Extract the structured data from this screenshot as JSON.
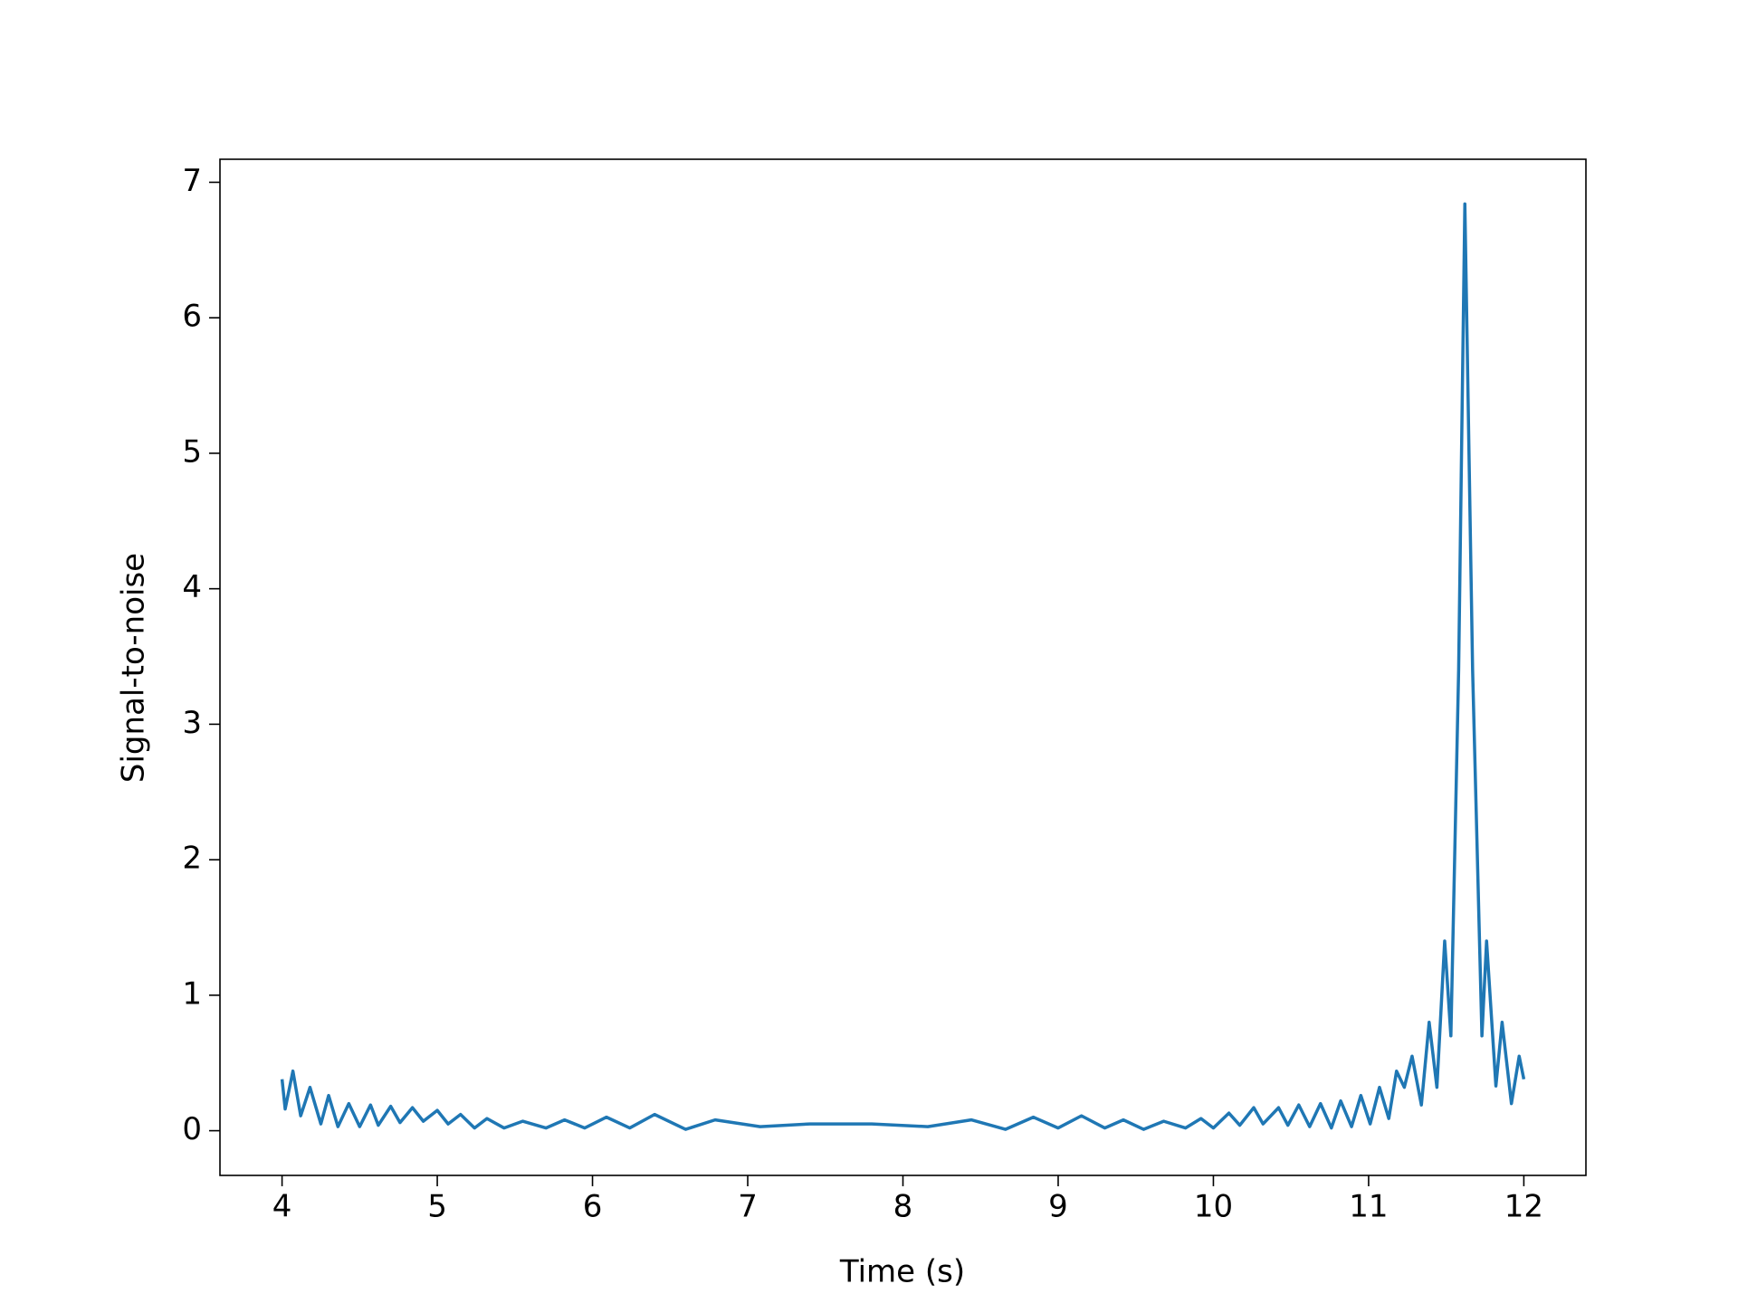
{
  "chart_data": {
    "type": "line",
    "xlabel": "Time (s)",
    "ylabel": "Signal-to-noise",
    "xlim": [
      3.6,
      12.4
    ],
    "ylim": [
      -0.33,
      7.17
    ],
    "xticks": [
      4,
      5,
      6,
      7,
      8,
      9,
      10,
      11,
      12
    ],
    "yticks": [
      0,
      1,
      2,
      3,
      4,
      5,
      6,
      7
    ],
    "grid": false,
    "series": [
      {
        "name": null,
        "color": "#1f77b4",
        "x": [
          4.0,
          4.02,
          4.07,
          4.12,
          4.18,
          4.25,
          4.3,
          4.36,
          4.43,
          4.5,
          4.57,
          4.62,
          4.7,
          4.76,
          4.84,
          4.91,
          5.0,
          5.07,
          5.15,
          5.24,
          5.32,
          5.43,
          5.55,
          5.7,
          5.82,
          5.95,
          6.09,
          6.24,
          6.4,
          6.6,
          6.79,
          7.08,
          7.4,
          7.8,
          8.16,
          8.44,
          8.66,
          8.84,
          9.0,
          9.15,
          9.3,
          9.42,
          9.55,
          9.68,
          9.82,
          9.92,
          10.0,
          10.1,
          10.17,
          10.26,
          10.32,
          10.42,
          10.48,
          10.55,
          10.62,
          10.69,
          10.76,
          10.82,
          10.89,
          10.95,
          11.01,
          11.07,
          11.13,
          11.18,
          11.23,
          11.28,
          11.34,
          11.39,
          11.44,
          11.49,
          11.53,
          11.58,
          11.62,
          11.67,
          11.73,
          11.76,
          11.82,
          11.86,
          11.92,
          11.97,
          12.0
        ],
        "values": [
          0.38,
          0.16,
          0.44,
          0.11,
          0.32,
          0.05,
          0.26,
          0.03,
          0.2,
          0.03,
          0.19,
          0.04,
          0.18,
          0.06,
          0.17,
          0.07,
          0.15,
          0.05,
          0.12,
          0.02,
          0.09,
          0.02,
          0.07,
          0.02,
          0.08,
          0.02,
          0.1,
          0.02,
          0.12,
          0.01,
          0.08,
          0.03,
          0.05,
          0.05,
          0.03,
          0.08,
          0.01,
          0.1,
          0.02,
          0.11,
          0.02,
          0.08,
          0.01,
          0.07,
          0.02,
          0.09,
          0.02,
          0.13,
          0.04,
          0.17,
          0.05,
          0.17,
          0.04,
          0.19,
          0.03,
          0.2,
          0.02,
          0.22,
          0.03,
          0.26,
          0.05,
          0.32,
          0.09,
          0.44,
          0.32,
          0.55,
          0.19,
          0.8,
          0.32,
          1.4,
          0.7,
          3.4,
          6.84,
          3.4,
          0.7,
          1.4,
          0.33,
          0.8,
          0.2,
          0.55,
          0.38
        ]
      }
    ]
  }
}
